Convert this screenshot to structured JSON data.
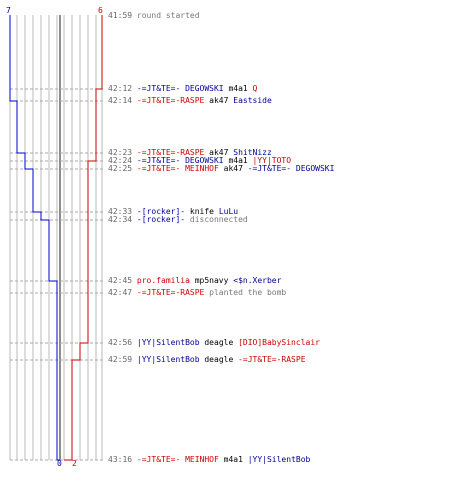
{
  "colors": {
    "blue_team": "#0000cc",
    "red_team": "#cc0000",
    "grid": "#bbbbbb",
    "center_line": "#666666",
    "dash": "#aaaaaa"
  },
  "scores": {
    "blue_start": "7",
    "red_start": "6",
    "blue_end": "0",
    "red_end": "2"
  },
  "events": [
    {
      "time": "41:59",
      "parts": [
        {
          "text": "round started",
          "c": "grey"
        }
      ]
    },
    {
      "time": "42:12",
      "parts": [
        {
          "text": "-=JT&TE=- DEGOWSKI",
          "c": "blue"
        },
        {
          "text": " m4a1 ",
          "c": "w"
        },
        {
          "text": "Q",
          "c": "red"
        }
      ]
    },
    {
      "time": "42:14",
      "parts": [
        {
          "text": "-=JT&TE=-RASPE",
          "c": "red"
        },
        {
          "text": " ak47 ",
          "c": "w"
        },
        {
          "text": "Eastside",
          "c": "blue"
        }
      ]
    },
    {
      "time": "42:23",
      "parts": [
        {
          "text": "-=JT&TE=-RASPE",
          "c": "red"
        },
        {
          "text": " ak47 ",
          "c": "w"
        },
        {
          "text": "ShitNizz",
          "c": "blue"
        }
      ]
    },
    {
      "time": "42:24",
      "parts": [
        {
          "text": "-=JT&TE=- DEGOWSKI",
          "c": "blue"
        },
        {
          "text": " m4a1 ",
          "c": "w"
        },
        {
          "text": "|YY|TOTO",
          "c": "red"
        }
      ]
    },
    {
      "time": "42:25",
      "parts": [
        {
          "text": "-=JT&TE=- MEINHOF",
          "c": "red"
        },
        {
          "text": " ak47 ",
          "c": "w"
        },
        {
          "text": "-=JT&TE=- DEGOWSKI",
          "c": "blue"
        }
      ]
    },
    {
      "time": "42:33",
      "parts": [
        {
          "text": "-[rocker]-",
          "c": "blue"
        },
        {
          "text": " knife ",
          "c": "w"
        },
        {
          "text": "LuLu",
          "c": "blue"
        }
      ]
    },
    {
      "time": "42:34",
      "parts": [
        {
          "text": "-[rocker]-",
          "c": "blue"
        },
        {
          "text": " disconnected",
          "c": "grey"
        }
      ]
    },
    {
      "time": "42:45",
      "parts": [
        {
          "text": "pro.familia",
          "c": "red"
        },
        {
          "text": " mp5navy ",
          "c": "w"
        },
        {
          "text": "<$n.Xerber",
          "c": "blue"
        }
      ]
    },
    {
      "time": "42:47",
      "parts": [
        {
          "text": "-=JT&TE=-RASPE",
          "c": "red"
        },
        {
          "text": " planted the bomb",
          "c": "grey"
        }
      ]
    },
    {
      "time": "42:56",
      "parts": [
        {
          "text": "|YY|SilentBob",
          "c": "blue"
        },
        {
          "text": " deagle ",
          "c": "w"
        },
        {
          "text": "[DIO]BabySinclair",
          "c": "red"
        }
      ]
    },
    {
      "time": "42:59",
      "parts": [
        {
          "text": "|YY|SilentBob",
          "c": "blue"
        },
        {
          "text": " deagle ",
          "c": "w"
        },
        {
          "text": "-=JT&TE=-RASPE",
          "c": "red"
        }
      ]
    },
    {
      "time": "43:16",
      "parts": [
        {
          "text": "-=JT&TE=- MEINHOF",
          "c": "red"
        },
        {
          "text": " m4a1 ",
          "c": "w"
        },
        {
          "text": "|YY|SilentBob",
          "c": "blue"
        }
      ]
    }
  ]
}
